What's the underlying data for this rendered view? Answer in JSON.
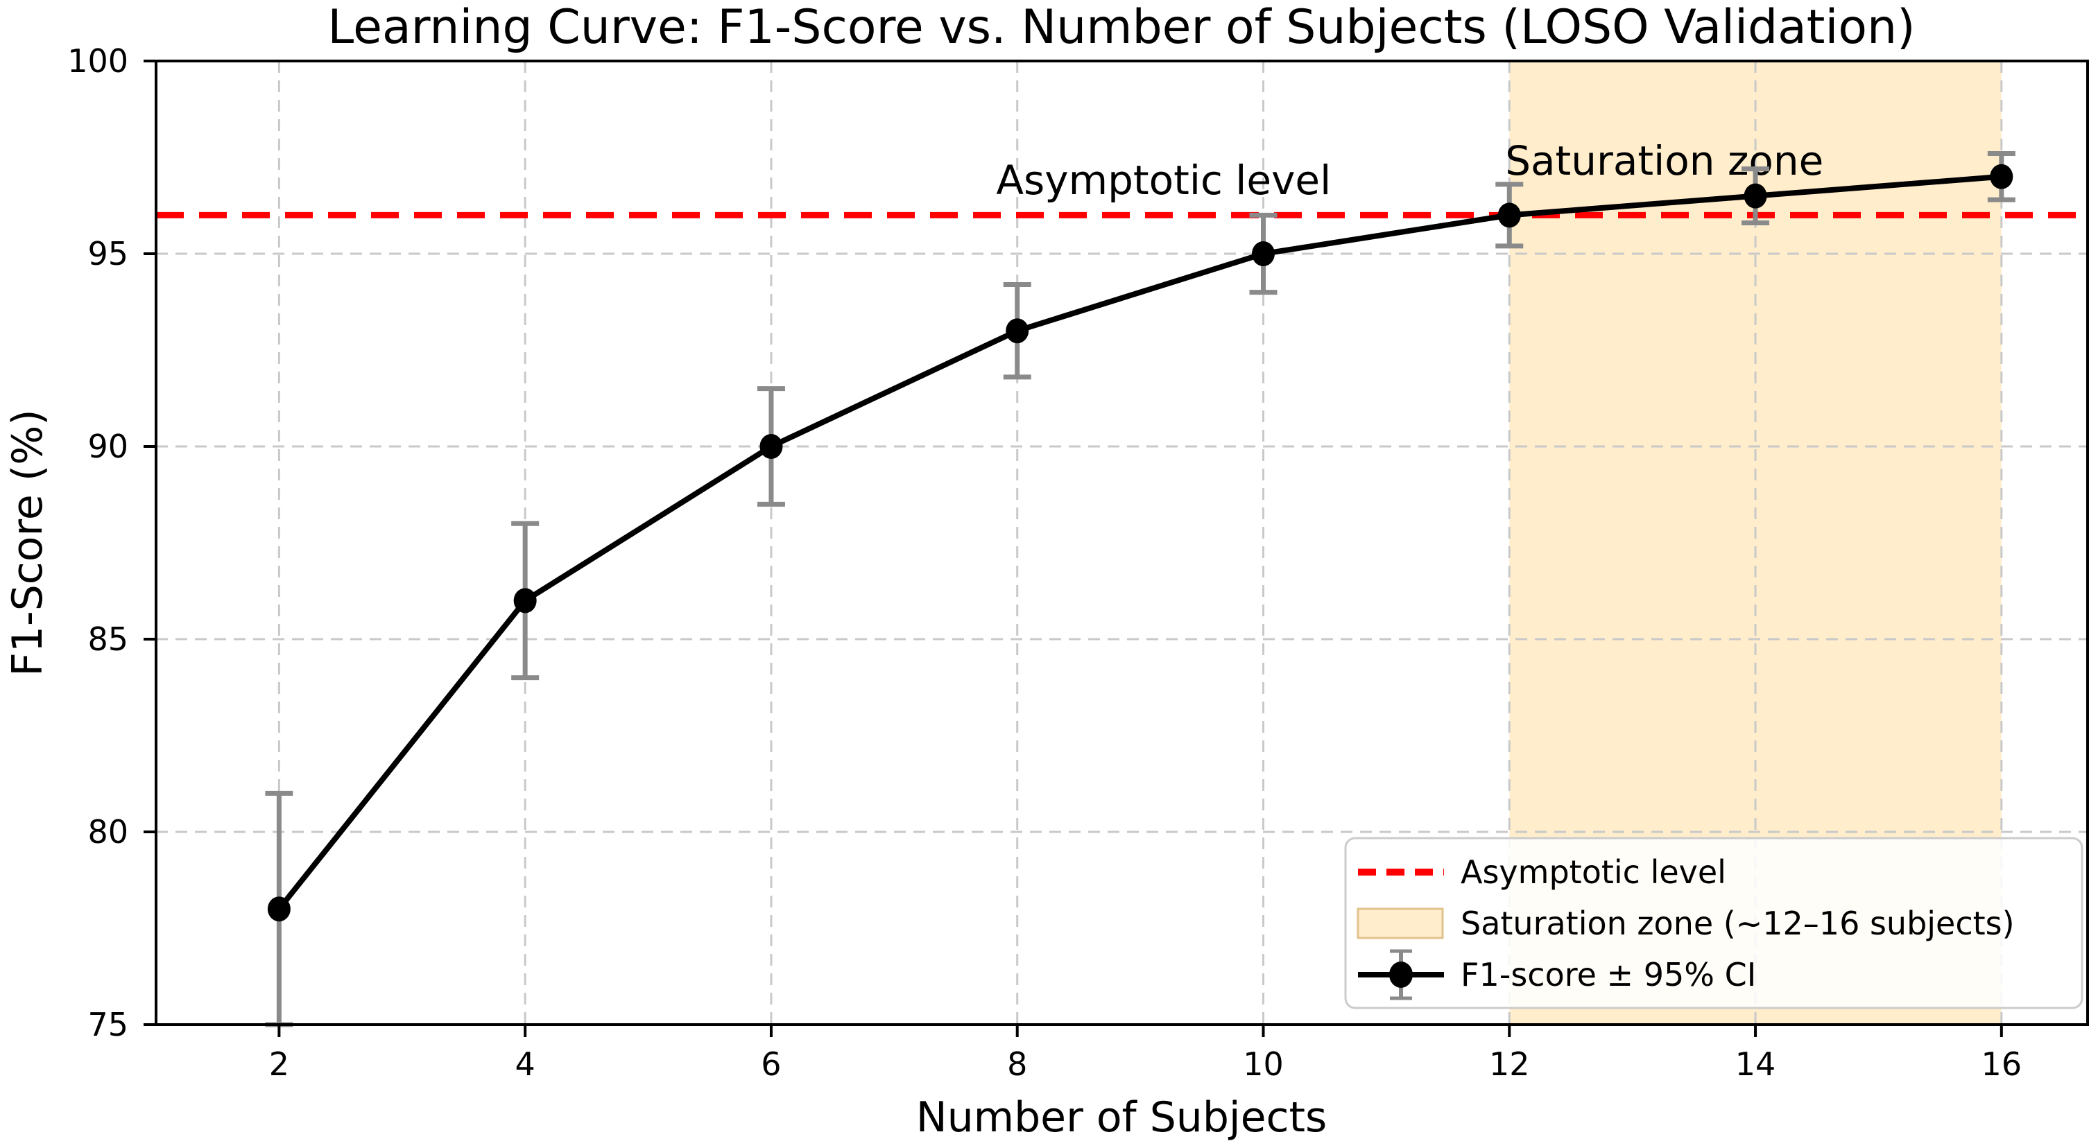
{
  "chart_data": {
    "type": "line",
    "title": "Learning Curve: F1-Score vs. Number of Subjects (LOSO Validation)",
    "xlabel": "Number of Subjects",
    "ylabel": "F1-Score (%)",
    "x": [
      2,
      4,
      6,
      8,
      10,
      12,
      14,
      16
    ],
    "series": [
      {
        "name": "F1-score ± 95% CI",
        "values": [
          78,
          86,
          90,
          93,
          95,
          96,
          96.5,
          97
        ],
        "ci": [
          3.0,
          2.0,
          1.5,
          1.2,
          1.0,
          0.8,
          0.7,
          0.6
        ],
        "color": "#000000",
        "marker": "o"
      }
    ],
    "asymptote": {
      "value": 96,
      "style": "dashed",
      "color": "#ff0000"
    },
    "saturation_zone": {
      "x_start": 12,
      "x_end": 16,
      "fill": "#ffedcc",
      "edge": "#e2c28c"
    },
    "annotations": [
      {
        "text": "Asymptotic level",
        "color": "#ff0000",
        "x": 9.19,
        "y": 96.55
      },
      {
        "text": "Saturation zone",
        "color": "#8b0000",
        "x": 13.26,
        "y": 97.05
      }
    ],
    "xlim": [
      1.0,
      16.7
    ],
    "ylim": [
      75,
      100
    ],
    "xticks": [
      2,
      4,
      6,
      8,
      10,
      12,
      14,
      16
    ],
    "yticks": [
      75,
      80,
      85,
      90,
      95,
      100
    ],
    "grid": true,
    "grid_color": "#c9c9c9",
    "errorbar_color": "#8a8a8a",
    "legend": {
      "position": "lower right",
      "entries": [
        {
          "label": "Asymptotic level"
        },
        {
          "label": "Saturation zone (~12–16 subjects)"
        },
        {
          "label": "F1-score ± 95% CI"
        }
      ]
    }
  }
}
